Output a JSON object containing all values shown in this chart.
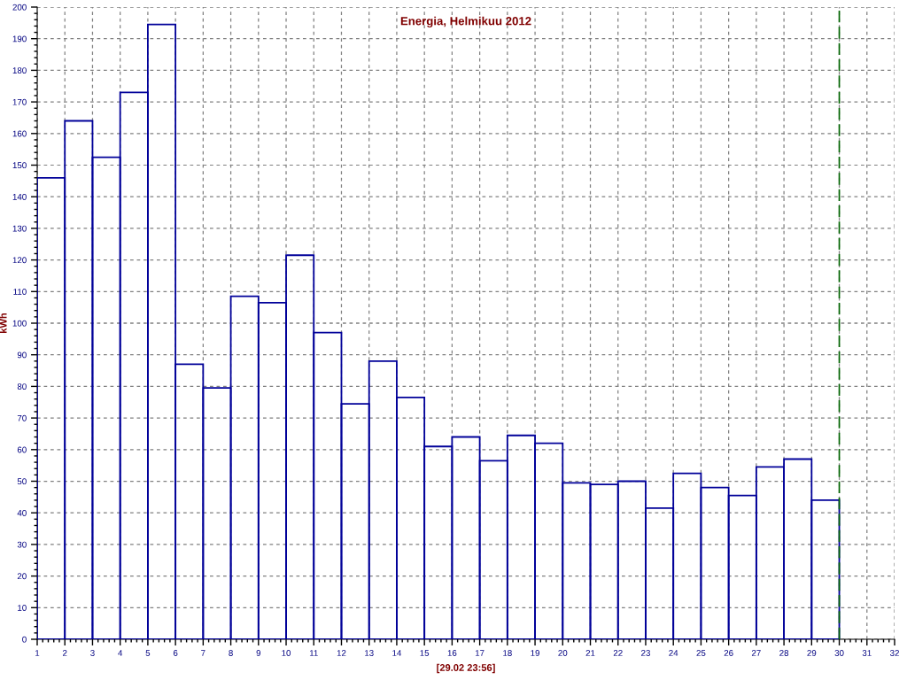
{
  "chart_data": {
    "type": "histogram",
    "title": "Energia, Helmikuu 2012",
    "ylabel": "kWh",
    "annotations": [
      "[29.02 23:56]"
    ],
    "bins": [
      1,
      2,
      3,
      4,
      5,
      6,
      7,
      8,
      9,
      10,
      11,
      12,
      13,
      14,
      15,
      16,
      17,
      18,
      19,
      20,
      21,
      22,
      23,
      24,
      25,
      26,
      27,
      28,
      29,
      30
    ],
    "values": [
      146,
      164,
      152.5,
      173,
      194.5,
      87,
      79.5,
      108.5,
      106.5,
      121.5,
      97,
      74.5,
      88,
      76.5,
      61,
      64,
      56.5,
      64.5,
      62,
      49.5,
      49,
      50,
      41.5,
      52.5,
      48,
      45.5,
      54.5,
      57,
      44
    ],
    "color": "#000099",
    "xlim": [
      1,
      32
    ],
    "xticks": [
      1,
      2,
      3,
      4,
      5,
      6,
      7,
      8,
      9,
      10,
      11,
      12,
      13,
      14,
      15,
      16,
      17,
      18,
      19,
      20,
      21,
      22,
      23,
      24,
      25,
      26,
      27,
      28,
      29,
      30,
      31,
      32
    ],
    "ylim": [
      0,
      200
    ],
    "yticks": [
      0,
      10,
      20,
      30,
      40,
      50,
      60,
      70,
      80,
      90,
      100,
      110,
      120,
      130,
      140,
      150,
      160,
      170,
      180,
      190,
      200
    ],
    "grid": true,
    "ref_lines": [
      {
        "axis": "x",
        "value": 30,
        "color": "#006400",
        "line_style": "dashed"
      }
    ]
  }
}
